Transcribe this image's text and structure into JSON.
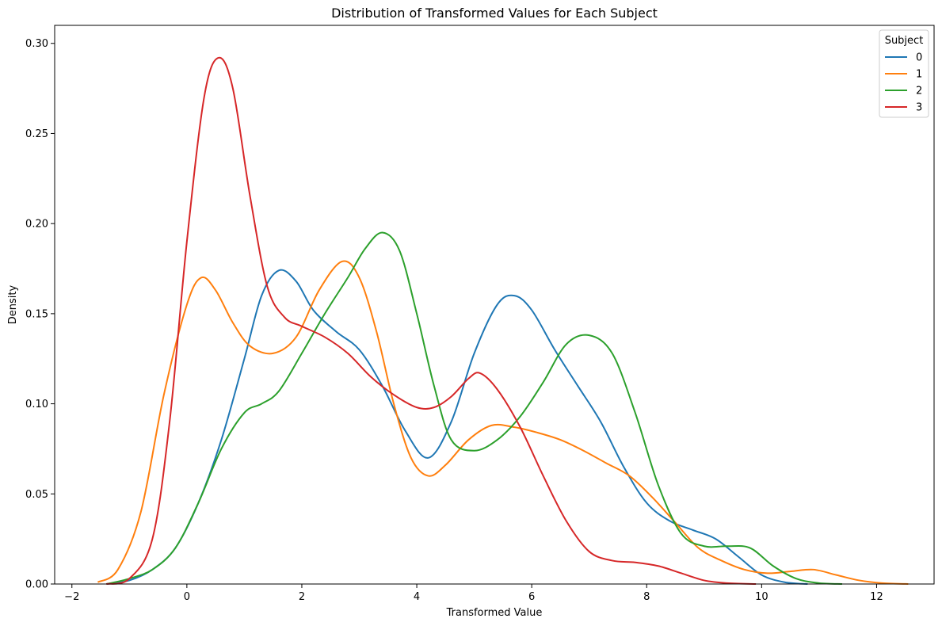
{
  "chart_data": {
    "type": "line",
    "title": "Distribution of Transformed Values for Each Subject",
    "xlabel": "Transformed Value",
    "ylabel": "Density",
    "xlim": [
      -2.3,
      13.0
    ],
    "ylim": [
      0.0,
      0.31
    ],
    "x_ticks": [
      -2,
      0,
      2,
      4,
      6,
      8,
      10,
      12
    ],
    "x_tick_labels": [
      "−2",
      "0",
      "2",
      "4",
      "6",
      "8",
      "10",
      "12"
    ],
    "y_ticks": [
      0.0,
      0.05,
      0.1,
      0.15,
      0.2,
      0.25,
      0.3
    ],
    "y_tick_labels": [
      "0.00",
      "0.05",
      "0.10",
      "0.15",
      "0.20",
      "0.25",
      "0.30"
    ],
    "grid": false,
    "legend": {
      "title": "Subject",
      "placement": "top-right"
    },
    "series": [
      {
        "name": "0",
        "color": "#1f77b4",
        "points": [
          [
            -1.4,
            0.0
          ],
          [
            -1.0,
            0.002
          ],
          [
            -0.6,
            0.008
          ],
          [
            -0.2,
            0.02
          ],
          [
            0.2,
            0.045
          ],
          [
            0.6,
            0.08
          ],
          [
            1.0,
            0.125
          ],
          [
            1.3,
            0.16
          ],
          [
            1.6,
            0.174
          ],
          [
            1.9,
            0.168
          ],
          [
            2.2,
            0.152
          ],
          [
            2.6,
            0.14
          ],
          [
            3.0,
            0.13
          ],
          [
            3.4,
            0.11
          ],
          [
            3.8,
            0.085
          ],
          [
            4.2,
            0.07
          ],
          [
            4.6,
            0.09
          ],
          [
            5.0,
            0.128
          ],
          [
            5.4,
            0.155
          ],
          [
            5.7,
            0.16
          ],
          [
            6.0,
            0.152
          ],
          [
            6.4,
            0.13
          ],
          [
            6.8,
            0.11
          ],
          [
            7.2,
            0.09
          ],
          [
            7.6,
            0.065
          ],
          [
            8.0,
            0.045
          ],
          [
            8.4,
            0.035
          ],
          [
            8.8,
            0.03
          ],
          [
            9.2,
            0.025
          ],
          [
            9.6,
            0.015
          ],
          [
            10.0,
            0.005
          ],
          [
            10.4,
            0.001
          ],
          [
            10.8,
            0.0
          ]
        ]
      },
      {
        "name": "1",
        "color": "#ff7f0e",
        "points": [
          [
            -1.55,
            0.001
          ],
          [
            -1.2,
            0.008
          ],
          [
            -0.8,
            0.04
          ],
          [
            -0.4,
            0.105
          ],
          [
            0.0,
            0.155
          ],
          [
            0.25,
            0.17
          ],
          [
            0.5,
            0.163
          ],
          [
            0.8,
            0.145
          ],
          [
            1.1,
            0.132
          ],
          [
            1.5,
            0.128
          ],
          [
            1.9,
            0.137
          ],
          [
            2.3,
            0.163
          ],
          [
            2.7,
            0.179
          ],
          [
            3.0,
            0.17
          ],
          [
            3.3,
            0.14
          ],
          [
            3.6,
            0.1
          ],
          [
            3.9,
            0.07
          ],
          [
            4.2,
            0.06
          ],
          [
            4.5,
            0.066
          ],
          [
            4.9,
            0.08
          ],
          [
            5.3,
            0.088
          ],
          [
            5.7,
            0.087
          ],
          [
            6.1,
            0.084
          ],
          [
            6.5,
            0.08
          ],
          [
            6.9,
            0.074
          ],
          [
            7.3,
            0.067
          ],
          [
            7.7,
            0.06
          ],
          [
            8.1,
            0.048
          ],
          [
            8.5,
            0.034
          ],
          [
            8.9,
            0.02
          ],
          [
            9.3,
            0.013
          ],
          [
            9.7,
            0.008
          ],
          [
            10.1,
            0.006
          ],
          [
            10.5,
            0.007
          ],
          [
            10.9,
            0.008
          ],
          [
            11.3,
            0.005
          ],
          [
            11.7,
            0.002
          ],
          [
            12.1,
            0.0005
          ],
          [
            12.55,
            0.0
          ]
        ]
      },
      {
        "name": "2",
        "color": "#2ca02c",
        "points": [
          [
            -1.4,
            0.0
          ],
          [
            -1.0,
            0.003
          ],
          [
            -0.6,
            0.008
          ],
          [
            -0.2,
            0.02
          ],
          [
            0.2,
            0.045
          ],
          [
            0.6,
            0.075
          ],
          [
            1.0,
            0.095
          ],
          [
            1.3,
            0.1
          ],
          [
            1.6,
            0.107
          ],
          [
            2.0,
            0.128
          ],
          [
            2.4,
            0.15
          ],
          [
            2.8,
            0.17
          ],
          [
            3.1,
            0.186
          ],
          [
            3.4,
            0.195
          ],
          [
            3.7,
            0.185
          ],
          [
            4.0,
            0.15
          ],
          [
            4.3,
            0.11
          ],
          [
            4.6,
            0.08
          ],
          [
            5.0,
            0.074
          ],
          [
            5.4,
            0.08
          ],
          [
            5.8,
            0.093
          ],
          [
            6.2,
            0.112
          ],
          [
            6.6,
            0.133
          ],
          [
            7.0,
            0.138
          ],
          [
            7.4,
            0.128
          ],
          [
            7.8,
            0.095
          ],
          [
            8.2,
            0.055
          ],
          [
            8.6,
            0.028
          ],
          [
            9.0,
            0.021
          ],
          [
            9.4,
            0.021
          ],
          [
            9.8,
            0.02
          ],
          [
            10.2,
            0.01
          ],
          [
            10.6,
            0.003
          ],
          [
            11.0,
            0.0005
          ],
          [
            11.4,
            0.0
          ]
        ]
      },
      {
        "name": "3",
        "color": "#d62728",
        "points": [
          [
            -1.4,
            0.0
          ],
          [
            -1.0,
            0.003
          ],
          [
            -0.6,
            0.025
          ],
          [
            -0.3,
            0.09
          ],
          [
            0.0,
            0.19
          ],
          [
            0.3,
            0.27
          ],
          [
            0.55,
            0.292
          ],
          [
            0.8,
            0.275
          ],
          [
            1.1,
            0.215
          ],
          [
            1.4,
            0.165
          ],
          [
            1.7,
            0.148
          ],
          [
            2.0,
            0.143
          ],
          [
            2.4,
            0.137
          ],
          [
            2.8,
            0.128
          ],
          [
            3.2,
            0.115
          ],
          [
            3.6,
            0.105
          ],
          [
            4.0,
            0.098
          ],
          [
            4.3,
            0.098
          ],
          [
            4.6,
            0.104
          ],
          [
            4.9,
            0.114
          ],
          [
            5.1,
            0.117
          ],
          [
            5.4,
            0.108
          ],
          [
            5.8,
            0.087
          ],
          [
            6.2,
            0.06
          ],
          [
            6.6,
            0.035
          ],
          [
            7.0,
            0.018
          ],
          [
            7.4,
            0.013
          ],
          [
            7.8,
            0.012
          ],
          [
            8.2,
            0.01
          ],
          [
            8.6,
            0.006
          ],
          [
            9.0,
            0.002
          ],
          [
            9.4,
            0.0005
          ],
          [
            9.9,
            0.0
          ]
        ]
      }
    ]
  }
}
